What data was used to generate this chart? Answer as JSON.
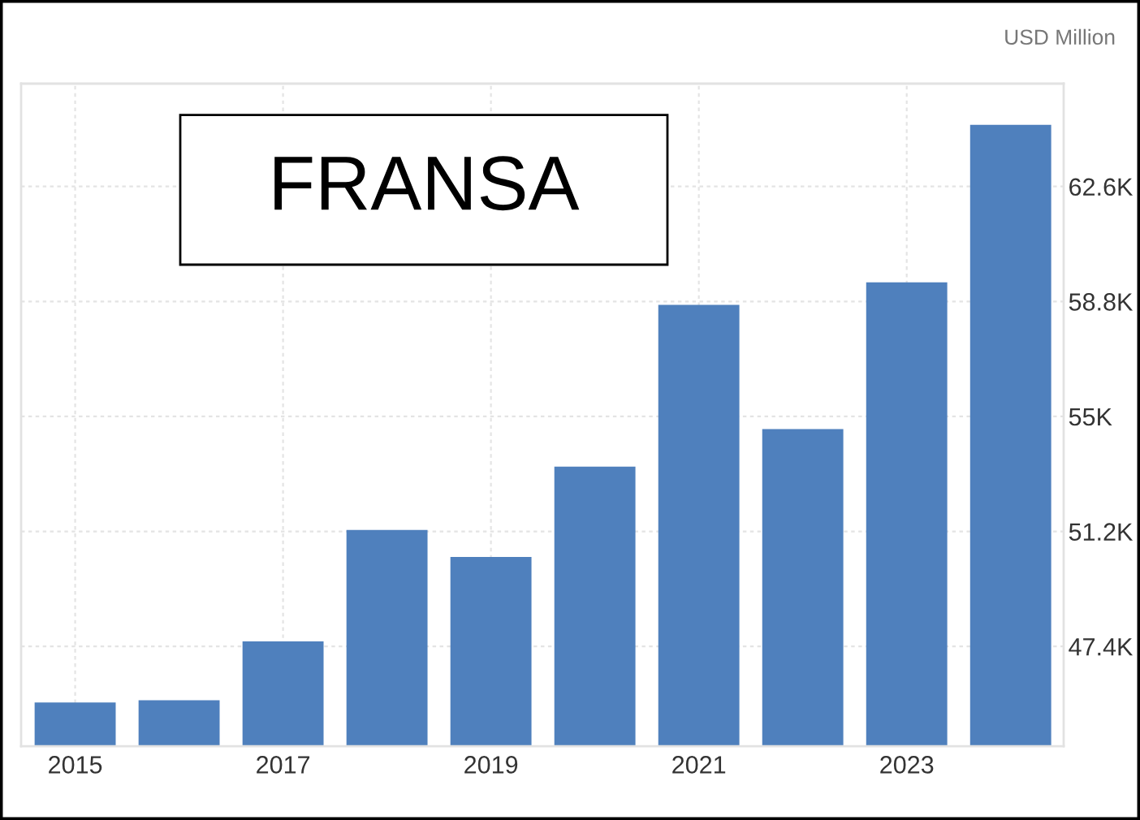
{
  "chart_data": {
    "type": "bar",
    "title": "FRANSA",
    "ylabel": "USD Million",
    "categories": [
      "2015",
      null,
      "2017",
      null,
      "2019",
      null,
      "2021",
      null,
      "2023",
      null
    ],
    "values": [
      45550,
      45620,
      47570,
      51250,
      50360,
      53340,
      58690,
      54580,
      59430,
      64640
    ],
    "color": "#4f80bd",
    "ylim": [
      44100,
      66000
    ],
    "yticks": [
      {
        "value": 47400,
        "label": "47.4K"
      },
      {
        "value": 51200,
        "label": "51.2K"
      },
      {
        "value": 55000,
        "label": "55K"
      },
      {
        "value": 58800,
        "label": "58.8K"
      },
      {
        "value": 62600,
        "label": "62.6K"
      }
    ],
    "grid": true
  }
}
